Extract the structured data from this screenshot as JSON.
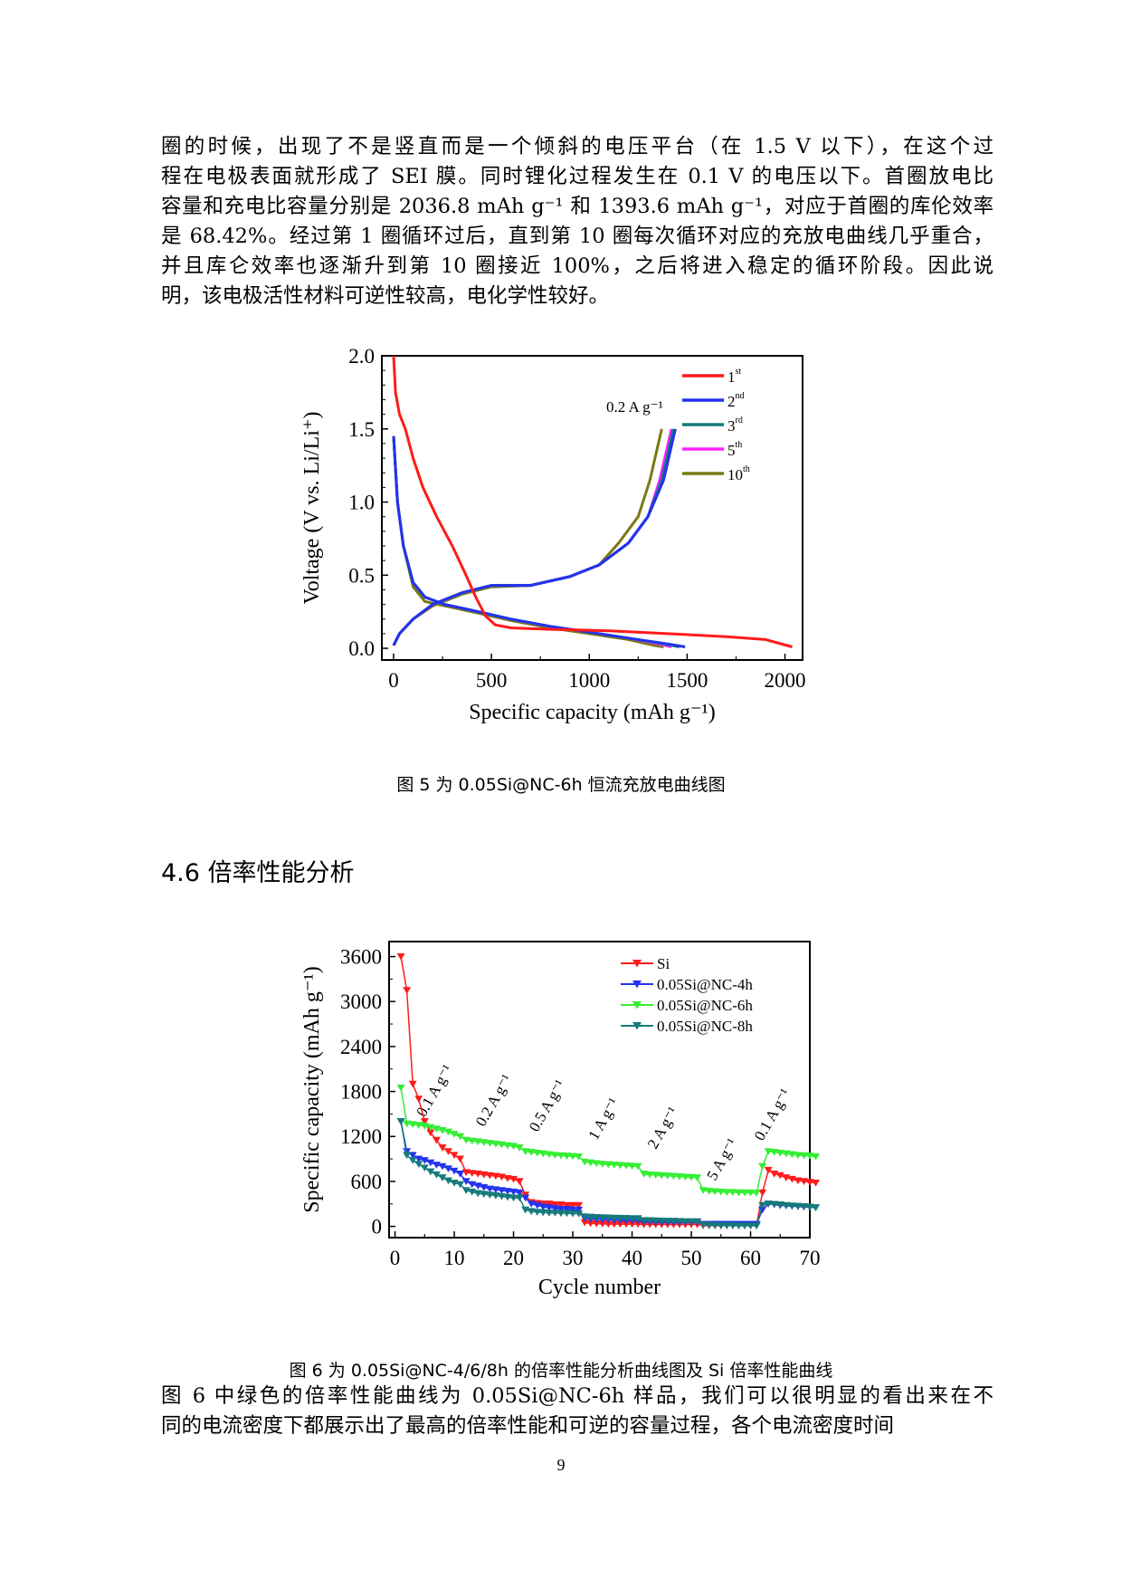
{
  "para1": {
    "lines": [
      "圈的时候，出现了不是竖直而是一个倾斜的电压平台（在 1.5 V 以下），在这个过",
      "程在电极表面就形成了 SEI 膜。同时锂化过程发生在 0.1 V 的电压以下。首圈放电比",
      "容量和充电比容量分别是 2036.8 mAh g⁻¹ 和 1393.6 mAh g⁻¹，对应于首圈的库伦效率",
      "是 68.42%。经过第 1 圈循环过后，直到第 10 圈每次循环对应的充放电曲线几乎重合，",
      "并且库仑效率也逐渐升到第 10 圈接近 100%，之后将进入稳定的循环阶段。因此说",
      "明，该电极活性材料可逆性较高，电化学性较好。"
    ]
  },
  "fig5_caption": "图 5 为 0.05Si@NC-6h 恒流充放电曲线图",
  "section_heading": "4.6 倍率性能分析",
  "fig6_caption": "图 6 为 0.05Si@NC-4/6/8h 的倍率性能分析曲线图及 Si 倍率性能曲线",
  "para2": {
    "lines": [
      "图 6 中绿色的倍率性能曲线为 0.05Si@NC-6h 样品，我们可以很明显的看出来在不",
      "同的电流密度下都展示出了最高的倍率性能和可逆的容量过程，各个电流密度时间"
    ]
  },
  "page_number": "9",
  "chart_data": [
    {
      "type": "line",
      "title": "",
      "xlabel": "Specific capacity (mAh g⁻¹)",
      "ylabel": "Voltage (V vs. Li/Li⁺)",
      "xlim": [
        -60,
        2090
      ],
      "ylim": [
        -0.08,
        2.0
      ],
      "xticks": [
        "0",
        "500",
        "1000",
        "1500",
        "2000"
      ],
      "yticks": [
        "0.0",
        "0.5",
        "1.0",
        "1.5",
        "2.0"
      ],
      "annotation": "0.2 A g⁻¹",
      "series": [
        {
          "name": "1st",
          "label_base": "1",
          "label_sup": "st",
          "color": "#ff1a1a",
          "discharge": [
            [
              0,
              2.0
            ],
            [
              10,
              1.75
            ],
            [
              30,
              1.6
            ],
            [
              60,
              1.5
            ],
            [
              100,
              1.3
            ],
            [
              150,
              1.1
            ],
            [
              220,
              0.9
            ],
            [
              300,
              0.7
            ],
            [
              370,
              0.5
            ],
            [
              420,
              0.35
            ],
            [
              470,
              0.22
            ],
            [
              520,
              0.16
            ],
            [
              600,
              0.14
            ],
            [
              800,
              0.13
            ],
            [
              1100,
              0.12
            ],
            [
              1400,
              0.1
            ],
            [
              1700,
              0.08
            ],
            [
              1900,
              0.06
            ],
            [
              2036.8,
              0.01
            ]
          ],
          "charge": []
        },
        {
          "name": "2nd",
          "label_base": "2",
          "label_sup": "nd",
          "color": "#2233ee",
          "discharge": [
            [
              0,
              1.45
            ],
            [
              20,
              1.0
            ],
            [
              50,
              0.7
            ],
            [
              100,
              0.45
            ],
            [
              160,
              0.35
            ],
            [
              260,
              0.3
            ],
            [
              400,
              0.26
            ],
            [
              600,
              0.2
            ],
            [
              800,
              0.15
            ],
            [
              1000,
              0.11
            ],
            [
              1200,
              0.07
            ],
            [
              1400,
              0.03
            ],
            [
              1490,
              0.01
            ]
          ],
          "charge": [
            [
              0,
              0.02
            ],
            [
              30,
              0.1
            ],
            [
              100,
              0.2
            ],
            [
              200,
              0.3
            ],
            [
              350,
              0.38
            ],
            [
              500,
              0.43
            ],
            [
              700,
              0.43
            ],
            [
              900,
              0.49
            ],
            [
              1050,
              0.57
            ],
            [
              1200,
              0.72
            ],
            [
              1300,
              0.9
            ],
            [
              1380,
              1.15
            ],
            [
              1440,
              1.5
            ]
          ]
        },
        {
          "name": "3rd",
          "label_base": "3",
          "label_sup": "rd",
          "color": "#167a7a",
          "discharge": [
            [
              0,
              1.45
            ],
            [
              20,
              1.0
            ],
            [
              50,
              0.7
            ],
            [
              100,
              0.45
            ],
            [
              160,
              0.35
            ],
            [
              260,
              0.3
            ],
            [
              400,
              0.26
            ],
            [
              600,
              0.2
            ],
            [
              800,
              0.15
            ],
            [
              1000,
              0.11
            ],
            [
              1200,
              0.07
            ],
            [
              1380,
              0.03
            ],
            [
              1460,
              0.01
            ]
          ],
          "charge": [
            [
              0,
              0.02
            ],
            [
              30,
              0.1
            ],
            [
              100,
              0.2
            ],
            [
              200,
              0.3
            ],
            [
              350,
              0.38
            ],
            [
              500,
              0.43
            ],
            [
              700,
              0.43
            ],
            [
              900,
              0.49
            ],
            [
              1050,
              0.57
            ],
            [
              1200,
              0.72
            ],
            [
              1300,
              0.9
            ],
            [
              1370,
              1.15
            ],
            [
              1430,
              1.5
            ]
          ]
        },
        {
          "name": "5th",
          "label_base": "5",
          "label_sup": "th",
          "color": "#ff22ff",
          "discharge": [
            [
              0,
              1.45
            ],
            [
              20,
              1.0
            ],
            [
              50,
              0.7
            ],
            [
              100,
              0.45
            ],
            [
              160,
              0.35
            ],
            [
              260,
              0.3
            ],
            [
              400,
              0.26
            ],
            [
              600,
              0.2
            ],
            [
              800,
              0.15
            ],
            [
              1000,
              0.11
            ],
            [
              1200,
              0.07
            ],
            [
              1350,
              0.03
            ],
            [
              1420,
              0.01
            ]
          ],
          "charge": [
            [
              0,
              0.02
            ],
            [
              30,
              0.1
            ],
            [
              100,
              0.2
            ],
            [
              200,
              0.3
            ],
            [
              350,
              0.38
            ],
            [
              500,
              0.43
            ],
            [
              700,
              0.43
            ],
            [
              900,
              0.49
            ],
            [
              1050,
              0.57
            ],
            [
              1200,
              0.72
            ],
            [
              1300,
              0.9
            ],
            [
              1360,
              1.15
            ],
            [
              1420,
              1.5
            ]
          ]
        },
        {
          "name": "10th",
          "label_base": "10",
          "label_sup": "th",
          "color": "#7a7a14",
          "discharge": [
            [
              0,
              1.45
            ],
            [
              20,
              1.0
            ],
            [
              50,
              0.7
            ],
            [
              100,
              0.42
            ],
            [
              160,
              0.32
            ],
            [
              260,
              0.29
            ],
            [
              400,
              0.25
            ],
            [
              600,
              0.19
            ],
            [
              800,
              0.14
            ],
            [
              1000,
              0.1
            ],
            [
              1200,
              0.06
            ],
            [
              1330,
              0.02
            ],
            [
              1380,
              0.01
            ]
          ],
          "charge": [
            [
              0,
              0.02
            ],
            [
              30,
              0.1
            ],
            [
              100,
              0.2
            ],
            [
              200,
              0.29
            ],
            [
              350,
              0.37
            ],
            [
              500,
              0.42
            ],
            [
              700,
              0.43
            ],
            [
              900,
              0.49
            ],
            [
              1050,
              0.57
            ],
            [
              1150,
              0.72
            ],
            [
              1250,
              0.9
            ],
            [
              1310,
              1.15
            ],
            [
              1370,
              1.5
            ]
          ]
        }
      ]
    },
    {
      "type": "line",
      "title": "",
      "xlabel": "Cycle number",
      "ylabel": "Specific capacity (mAh g⁻¹)",
      "xlim": [
        -1,
        70
      ],
      "ylim": [
        -150,
        3800
      ],
      "xticks": [
        "0",
        "10",
        "20",
        "30",
        "40",
        "50",
        "60",
        "70"
      ],
      "yticks": [
        "0",
        "600",
        "1200",
        "1800",
        "2400",
        "3000",
        "3600"
      ],
      "rate_labels": [
        {
          "text": "0.1 A g⁻¹",
          "cycle": 5,
          "value": 1450
        },
        {
          "text": "0.2 A g⁻¹",
          "cycle": 15,
          "value": 1320
        },
        {
          "text": "0.5 A g⁻¹",
          "cycle": 24,
          "value": 1250
        },
        {
          "text": "1 A g⁻¹",
          "cycle": 34,
          "value": 1140
        },
        {
          "text": "2 A g⁻¹",
          "cycle": 44,
          "value": 1020
        },
        {
          "text": "5 A g⁻¹",
          "cycle": 54,
          "value": 600
        },
        {
          "text": "0.1 A g⁻¹",
          "cycle": 62,
          "value": 1130
        }
      ],
      "series": [
        {
          "name": "Si",
          "color": "#ff1a1a",
          "values": [
            3600,
            3150,
            1900,
            1700,
            1400,
            1250,
            1150,
            1050,
            1000,
            950,
            900,
            720,
            710,
            700,
            690,
            680,
            670,
            660,
            640,
            630,
            600,
            420,
            320,
            310,
            300,
            300,
            290,
            290,
            280,
            280,
            280,
            50,
            40,
            35,
            35,
            30,
            30,
            30,
            30,
            30,
            30,
            25,
            25,
            25,
            25,
            25,
            25,
            25,
            25,
            25,
            25,
            10,
            10,
            10,
            10,
            10,
            10,
            10,
            10,
            10,
            10,
            450,
            750,
            700,
            680,
            650,
            630,
            610,
            600,
            590,
            580
          ]
        },
        {
          "name": "0.05Si@NC-4h",
          "color": "#2233ee",
          "values": [
            1400,
            1000,
            950,
            900,
            880,
            850,
            820,
            800,
            770,
            740,
            700,
            600,
            560,
            540,
            520,
            500,
            490,
            480,
            470,
            460,
            450,
            380,
            300,
            280,
            260,
            250,
            240,
            230,
            230,
            220,
            220,
            110,
            100,
            95,
            90,
            90,
            85,
            85,
            80,
            80,
            80,
            60,
            60,
            58,
            55,
            55,
            55,
            55,
            55,
            55,
            55,
            30,
            30,
            30,
            30,
            30,
            30,
            30,
            30,
            30,
            30,
            220,
            300,
            290,
            280,
            275,
            270,
            265,
            260,
            255,
            250
          ]
        },
        {
          "name": "0.05Si@NC-6h",
          "color": "#33ee33",
          "values": [
            1850,
            1370,
            1360,
            1350,
            1340,
            1320,
            1300,
            1280,
            1260,
            1230,
            1200,
            1150,
            1140,
            1130,
            1120,
            1110,
            1100,
            1090,
            1080,
            1070,
            1050,
            1000,
            990,
            980,
            970,
            960,
            950,
            945,
            940,
            935,
            930,
            860,
            850,
            840,
            830,
            825,
            820,
            815,
            810,
            805,
            800,
            700,
            690,
            685,
            680,
            675,
            670,
            665,
            660,
            655,
            650,
            480,
            470,
            465,
            460,
            455,
            455,
            450,
            450,
            448,
            445,
            800,
            1000,
            990,
            980,
            970,
            960,
            950,
            945,
            940,
            930
          ]
        },
        {
          "name": "0.05Si@NC-8h",
          "color": "#167a7a",
          "values": [
            1400,
            950,
            880,
            830,
            780,
            730,
            690,
            650,
            610,
            580,
            560,
            480,
            460,
            440,
            430,
            420,
            410,
            400,
            390,
            380,
            380,
            220,
            200,
            190,
            185,
            180,
            180,
            175,
            175,
            170,
            170,
            130,
            125,
            120,
            118,
            115,
            112,
            110,
            108,
            105,
            105,
            80,
            78,
            75,
            72,
            70,
            70,
            68,
            65,
            65,
            65,
            20,
            15,
            12,
            10,
            10,
            10,
            8,
            8,
            8,
            8,
            280,
            300,
            295,
            290,
            280,
            275,
            270,
            265,
            260,
            250
          ]
        }
      ]
    }
  ]
}
